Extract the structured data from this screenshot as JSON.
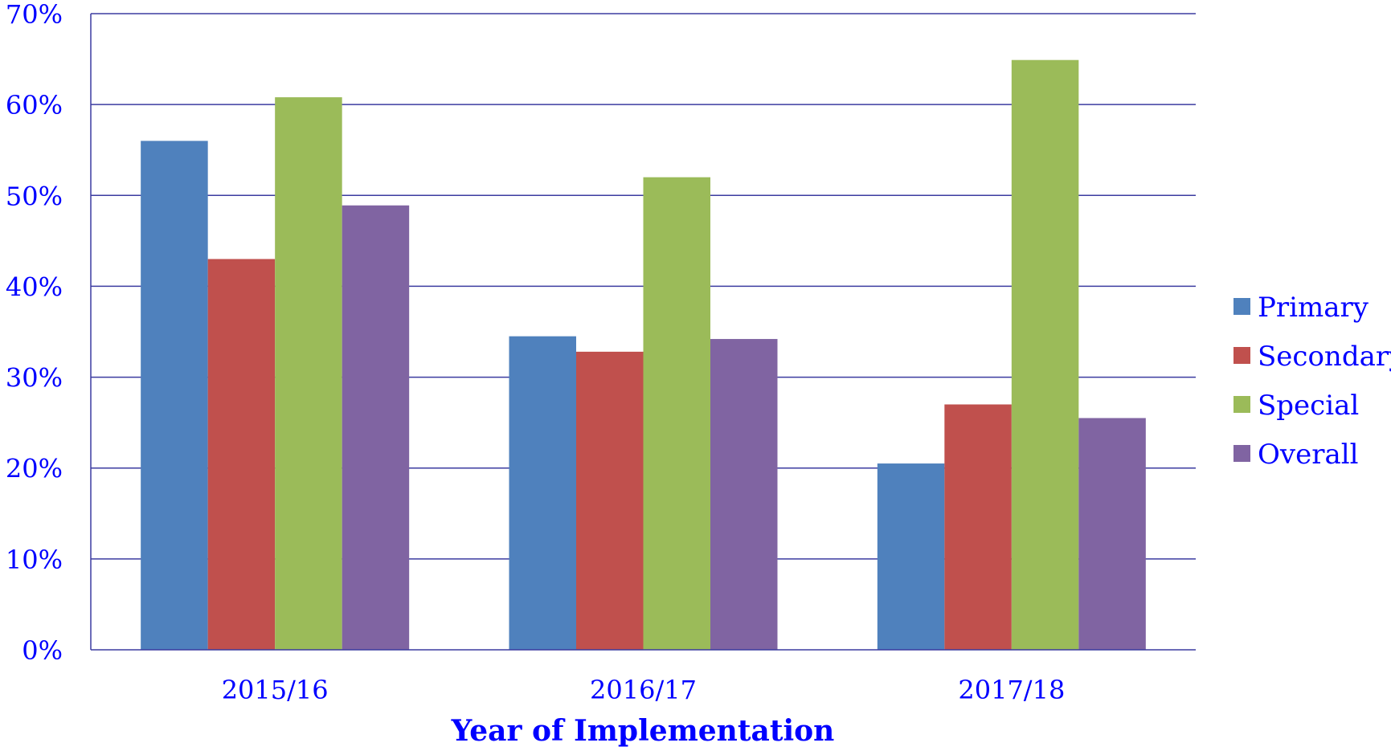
{
  "chart_data": {
    "type": "bar",
    "categories": [
      "2015/16",
      "2016/17",
      "2017/18"
    ],
    "series": [
      {
        "name": "Primary",
        "values": [
          56,
          34.5,
          20.5
        ],
        "color": "#4F81BD"
      },
      {
        "name": "Secondary",
        "values": [
          43,
          32.8,
          27
        ],
        "color": "#C0504D"
      },
      {
        "name": "Special",
        "values": [
          60.8,
          52,
          64.9
        ],
        "color": "#9BBB59"
      },
      {
        "name": "Overall",
        "values": [
          48.9,
          34.2,
          25.5
        ],
        "color": "#8064A2"
      }
    ],
    "title": "",
    "xlabel": "Year of Implementation",
    "ylabel": "",
    "ylim": [
      0,
      70
    ],
    "yticks": [
      "0%",
      "10%",
      "20%",
      "30%",
      "40%",
      "50%",
      "60%",
      "70%"
    ],
    "grid": true,
    "legend": "right",
    "text_color": "#0000FF",
    "grid_color": "#3B3BA0"
  }
}
